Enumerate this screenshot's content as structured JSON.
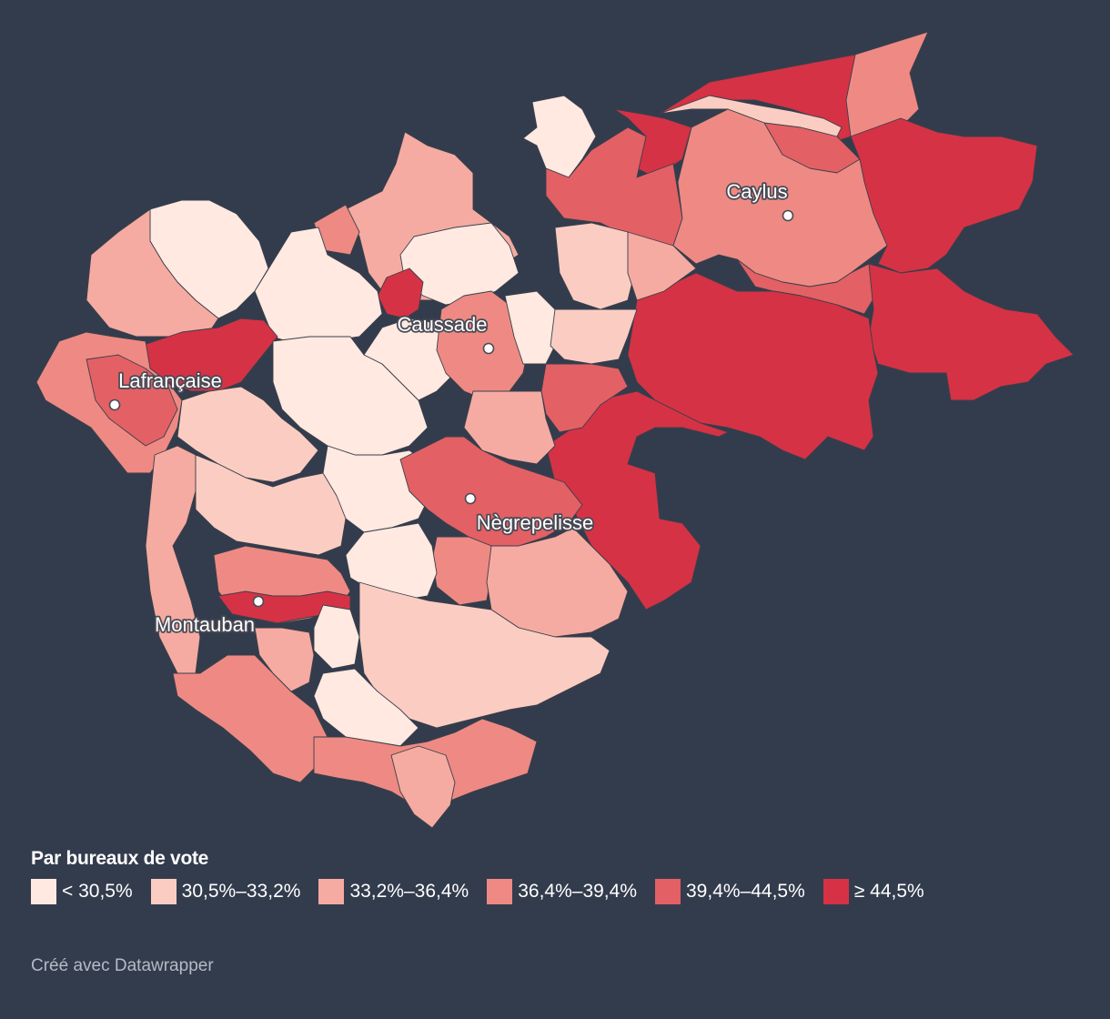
{
  "legend": {
    "title": "Par bureaux de vote",
    "classes": [
      {
        "label": "< 30,5%",
        "color": "#ffe9e1"
      },
      {
        "label": "30,5%–33,2%",
        "color": "#fbcdc2"
      },
      {
        "label": "33,2%–36,4%",
        "color": "#f5aba1"
      },
      {
        "label": "36,4%–39,4%",
        "color": "#ee8a83"
      },
      {
        "label": "39,4%–44,5%",
        "color": "#e36065"
      },
      {
        "label": "≥ 44,5%",
        "color": "#d53245"
      }
    ]
  },
  "cities": [
    {
      "name": "Caylus"
    },
    {
      "name": "Caussade"
    },
    {
      "name": "Lafrançaise"
    },
    {
      "name": "Nègrepelisse"
    },
    {
      "name": "Montauban"
    }
  ],
  "credit": "Créé avec Datawrapper",
  "colors": {
    "background": "#333c4d",
    "region_stroke": "#3b3f4a"
  }
}
